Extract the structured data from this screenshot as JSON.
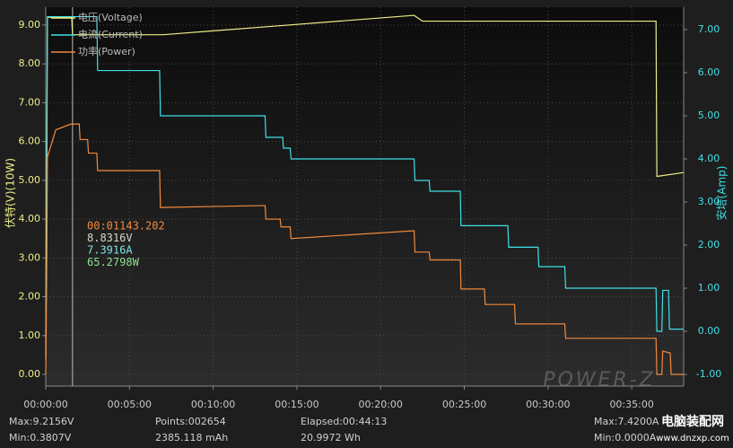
{
  "chart_data": {
    "type": "line",
    "y_label": "伏特(V)(10W)",
    "y2_label": "安培(Amp)",
    "grid": true,
    "xlim": [
      0,
      38.1
    ],
    "xticks": [
      {
        "value": 0,
        "label": "00:00:00"
      },
      {
        "value": 5,
        "label": "00:05:00"
      },
      {
        "value": 10,
        "label": "00:10:00"
      },
      {
        "value": 15,
        "label": "00:15:00"
      },
      {
        "value": 20,
        "label": "00:20:00"
      },
      {
        "value": 25,
        "label": "00:25:00"
      },
      {
        "value": 30,
        "label": "00:30:00"
      },
      {
        "value": 35,
        "label": "00:35:00"
      }
    ],
    "ylim": [
      -0.3,
      9.46
    ],
    "yticks": [
      {
        "value": 0,
        "label": "0.00"
      },
      {
        "value": 1,
        "label": "1.00"
      },
      {
        "value": 2,
        "label": "2.00"
      },
      {
        "value": 3,
        "label": "3.00"
      },
      {
        "value": 4,
        "label": "4.00"
      },
      {
        "value": 5,
        "label": "5.00"
      },
      {
        "value": 6,
        "label": "6.00"
      },
      {
        "value": 7,
        "label": "7.00"
      },
      {
        "value": 8,
        "label": "8.00"
      },
      {
        "value": 9,
        "label": "9.00"
      }
    ],
    "y2lim": [
      -1.27,
      7.52
    ],
    "y2ticks": [
      {
        "value": -1,
        "label": "-1.00"
      },
      {
        "value": 0,
        "label": "0.00"
      },
      {
        "value": 1,
        "label": "1.00"
      },
      {
        "value": 2,
        "label": "2.00"
      },
      {
        "value": 3,
        "label": "3.00"
      },
      {
        "value": 4,
        "label": "4.00"
      },
      {
        "value": 5,
        "label": "5.00"
      },
      {
        "value": 6,
        "label": "6.00"
      },
      {
        "value": 7,
        "label": "7.00"
      }
    ],
    "series": [
      {
        "name": "电压(Voltage)",
        "color": "#eeee88",
        "x": [
          0,
          0.05,
          0.1,
          1.55,
          1.6,
          7,
          13,
          22,
          22.5,
          36.45,
          36.5,
          38.1
        ],
        "values": [
          0.4,
          5.1,
          9.2,
          9.2,
          8.75,
          8.75,
          8.95,
          9.25,
          9.1,
          9.1,
          5.1,
          5.2
        ]
      },
      {
        "name": "电流(Current)",
        "color": "#3ee0e6",
        "axis": "y2",
        "x": [
          0,
          0.05,
          0.1,
          0.15,
          3.05,
          3.1,
          6.8,
          6.85,
          13.1,
          13.15,
          14.15,
          14.2,
          14.6,
          14.65,
          22.0,
          22.05,
          22.9,
          22.95,
          24.76,
          24.8,
          27.6,
          27.65,
          29.4,
          29.45,
          31.0,
          31.05,
          36.45,
          36.5,
          36.8,
          36.85,
          37.2,
          37.25,
          38.1
        ],
        "values": [
          0,
          1.5,
          7.3,
          7.3,
          7.3,
          6.05,
          6.05,
          5.0,
          5.0,
          4.5,
          4.5,
          4.25,
          4.25,
          4.0,
          4.0,
          3.5,
          3.5,
          3.25,
          3.25,
          2.45,
          2.45,
          1.95,
          1.95,
          1.5,
          1.5,
          1.0,
          1.0,
          0.0,
          0.0,
          0.95,
          0.95,
          0.05,
          0.05
        ]
      },
      {
        "name": "功率(Power)",
        "color": "#f28a3c",
        "x": [
          0,
          0.05,
          0.1,
          0.6,
          1.5,
          2.0,
          2.05,
          2.5,
          2.55,
          3.05,
          3.1,
          6.8,
          6.85,
          13.1,
          13.15,
          14.0,
          14.05,
          14.6,
          14.65,
          22.0,
          22.05,
          22.9,
          22.95,
          24.76,
          24.8,
          26.2,
          26.25,
          28.0,
          28.05,
          31.0,
          31.05,
          36.45,
          36.5,
          36.8,
          36.85,
          37.3,
          37.35,
          38.1
        ],
        "values": [
          0,
          2.3,
          5.6,
          6.3,
          6.45,
          6.45,
          6.05,
          6.05,
          5.7,
          5.7,
          5.25,
          5.25,
          4.3,
          4.35,
          4.0,
          4.0,
          3.8,
          3.8,
          3.5,
          3.7,
          3.15,
          3.15,
          2.95,
          2.95,
          2.2,
          2.2,
          1.8,
          1.8,
          1.3,
          1.3,
          0.93,
          0.93,
          0.0,
          0.0,
          0.6,
          0.55,
          0.0,
          0.0
        ]
      }
    ],
    "cursor_x": 1.6,
    "cursor_readout": [
      {
        "text": "00:01143.202",
        "color": "#f28a3c"
      },
      {
        "text": "8.8316V",
        "color": "#d8d8c8"
      },
      {
        "text": "7.3916A",
        "color": "#7fe0e0"
      },
      {
        "text": "65.2798W",
        "color": "#8fe08f"
      }
    ]
  },
  "logo": "POWER-Z",
  "stats": [
    {
      "top": "Max:9.2156V",
      "bottom": "Min:0.3807V"
    },
    {
      "top": "Points:002654",
      "bottom": "2385.118 mAh"
    },
    {
      "top": "Elapsed:00:44:13",
      "bottom": "20.9972 Wh"
    },
    {
      "top": "Max:7.4200A",
      "bottom": "Min:0.0000A"
    }
  ],
  "watermark": {
    "name": "电脑装配网",
    "url": "www.dnzxp.com"
  }
}
